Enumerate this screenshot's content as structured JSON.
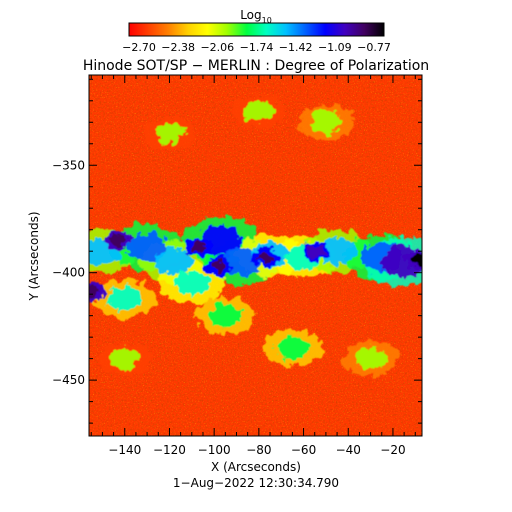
{
  "colorbar": {
    "label_main": "Log",
    "label_sub": "10",
    "tick_labels": [
      "−2.70",
      "−2.38",
      "−2.06",
      "−1.74",
      "−1.42",
      "−1.09",
      "−0.77"
    ],
    "colors": [
      "#ff0000",
      "#ff4000",
      "#ff8000",
      "#ffd000",
      "#ffff00",
      "#a0ff00",
      "#00ff40",
      "#00ffc0",
      "#00c0ff",
      "#0060ff",
      "#0000ff",
      "#4000c0",
      "#400060",
      "#000000"
    ]
  },
  "title": "Hinode SOT/SP − MERLIN : Degree of Polarization",
  "footer": "1−Aug−2022 12:30:34.790",
  "chart_data": {
    "type": "heatmap",
    "title": "Hinode SOT/SP − MERLIN : Degree of Polarization",
    "xlabel": "X (Arcseconds)",
    "ylabel": "Y (Arcseconds)",
    "xlim": [
      -156,
      -7
    ],
    "ylim": [
      -476,
      -308
    ],
    "x_ticks": [
      -140,
      -120,
      -100,
      -80,
      -60,
      -40,
      -20
    ],
    "x_tick_labels": [
      "−140",
      "−120",
      "−100",
      "−80",
      "−60",
      "−40",
      "−20"
    ],
    "y_ticks": [
      -450,
      -400,
      -350
    ],
    "y_tick_labels": [
      "−450",
      "−400",
      "−350"
    ],
    "colorbar_range": [
      -2.7,
      -0.77
    ],
    "colorbar_label": "Log10",
    "background_level": -2.55,
    "features": [
      {
        "x": -150,
        "y": -390,
        "level": -1.45
      },
      {
        "x": -130,
        "y": -388,
        "level": -1.3
      },
      {
        "x": -118,
        "y": -395,
        "level": -1.5
      },
      {
        "x": -97,
        "y": -385,
        "level": -1.25
      },
      {
        "x": -88,
        "y": -395,
        "level": -1.35
      },
      {
        "x": -75,
        "y": -392,
        "level": -1.55
      },
      {
        "x": -60,
        "y": -393,
        "level": -1.6
      },
      {
        "x": -45,
        "y": -390,
        "level": -1.5
      },
      {
        "x": -25,
        "y": -393,
        "level": -1.3
      },
      {
        "x": -15,
        "y": -395,
        "level": -1.1
      },
      {
        "x": -110,
        "y": -405,
        "level": -1.6
      },
      {
        "x": -140,
        "y": -412,
        "level": -1.7
      },
      {
        "x": -95,
        "y": -420,
        "level": -1.8
      },
      {
        "x": -65,
        "y": -435,
        "level": -1.8
      },
      {
        "x": -30,
        "y": -440,
        "level": -1.9
      },
      {
        "x": -50,
        "y": -330,
        "level": -1.9
      },
      {
        "x": -120,
        "y": -335,
        "level": -2.0
      },
      {
        "x": -80,
        "y": -325,
        "level": -2.0
      },
      {
        "x": -140,
        "y": -440,
        "level": -2.0
      }
    ],
    "dark_cores": [
      {
        "x": -143,
        "y": -385,
        "level": -0.85
      },
      {
        "x": -107,
        "y": -388,
        "level": -0.9
      },
      {
        "x": -98,
        "y": -397,
        "level": -0.95
      },
      {
        "x": -77,
        "y": -393,
        "level": -0.92
      },
      {
        "x": -55,
        "y": -390,
        "level": -1.0
      },
      {
        "x": -9,
        "y": -394,
        "level": -0.8
      },
      {
        "x": -155,
        "y": -409,
        "level": -0.85
      }
    ]
  }
}
